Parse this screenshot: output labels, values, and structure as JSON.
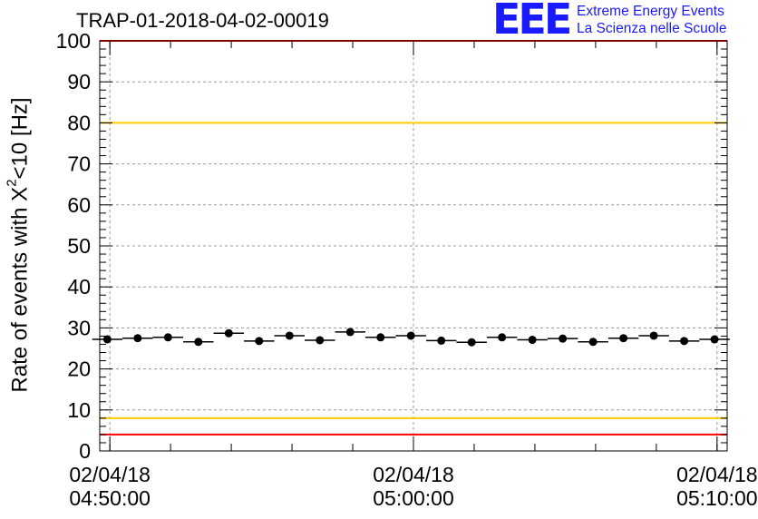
{
  "run_title": "TRAP-01-2018-04-02-00019",
  "logo": {
    "mark": "EEE",
    "line1": "Extreme Energy Events",
    "line2": "La Scienza nelle Scuole",
    "color": "#1a1aff"
  },
  "ylabel": {
    "before": "Rate of events with X",
    "sup": "2",
    "after": "<10 [Hz]"
  },
  "chart_data": {
    "type": "scatter",
    "ylim": [
      0,
      100
    ],
    "y_ticks": [
      0,
      10,
      20,
      30,
      40,
      50,
      60,
      70,
      80,
      90,
      100
    ],
    "xlim": [
      "2018-04-02 04:49:40",
      "2018-04-02 05:10:20"
    ],
    "x_ticks": [
      {
        "time": "2018-04-02 04:50:00",
        "date": "02/04/18",
        "clock": "04:50:00"
      },
      {
        "time": "2018-04-02 05:00:00",
        "date": "02/04/18",
        "clock": "05:00:00"
      },
      {
        "time": "2018-04-02 05:10:00",
        "date": "02/04/18",
        "clock": "05:10:00"
      }
    ],
    "grid": true,
    "bin_width_seconds": 60,
    "reference_lines": [
      {
        "value": 100,
        "color": "#ff0000"
      },
      {
        "value": 80,
        "color": "#ffcc00"
      },
      {
        "value": 8,
        "color": "#ffcc00"
      },
      {
        "value": 4,
        "color": "#ff0000"
      }
    ],
    "points": [
      {
        "x": "2018-04-02 04:49:55",
        "y": 27.2
      },
      {
        "x": "2018-04-02 04:50:55",
        "y": 27.5
      },
      {
        "x": "2018-04-02 04:51:55",
        "y": 27.7
      },
      {
        "x": "2018-04-02 04:52:55",
        "y": 26.6
      },
      {
        "x": "2018-04-02 04:53:55",
        "y": 28.7
      },
      {
        "x": "2018-04-02 04:54:55",
        "y": 26.8
      },
      {
        "x": "2018-04-02 04:55:55",
        "y": 28.1
      },
      {
        "x": "2018-04-02 04:56:55",
        "y": 27.0
      },
      {
        "x": "2018-04-02 04:57:55",
        "y": 29.0
      },
      {
        "x": "2018-04-02 04:58:55",
        "y": 27.7
      },
      {
        "x": "2018-04-02 04:59:55",
        "y": 28.1
      },
      {
        "x": "2018-04-02 05:00:55",
        "y": 26.9
      },
      {
        "x": "2018-04-02 05:01:55",
        "y": 26.5
      },
      {
        "x": "2018-04-02 05:02:55",
        "y": 27.7
      },
      {
        "x": "2018-04-02 05:03:55",
        "y": 27.1
      },
      {
        "x": "2018-04-02 05:04:55",
        "y": 27.4
      },
      {
        "x": "2018-04-02 05:05:55",
        "y": 26.6
      },
      {
        "x": "2018-04-02 05:06:55",
        "y": 27.5
      },
      {
        "x": "2018-04-02 05:07:55",
        "y": 28.1
      },
      {
        "x": "2018-04-02 05:08:55",
        "y": 26.8
      },
      {
        "x": "2018-04-02 05:09:55",
        "y": 27.2
      }
    ],
    "marker_color": "#000000",
    "grid_color": "#9a9a9a"
  }
}
